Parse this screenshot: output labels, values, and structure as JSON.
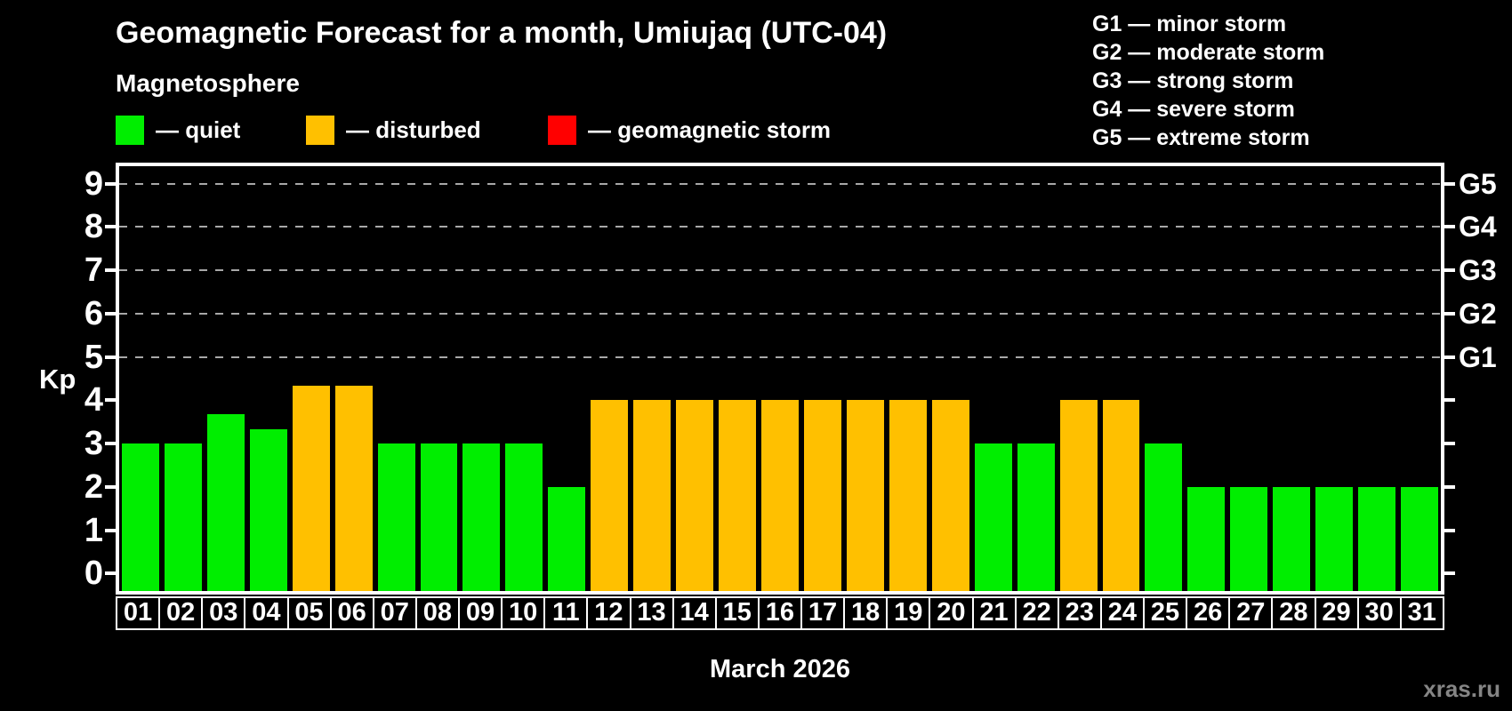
{
  "header": {
    "title": "Geomagnetic Forecast for a month, Umiujaq (UTC-04)",
    "subtitle": "Magnetosphere"
  },
  "magnetosphere_legend": {
    "items": [
      {
        "key": "quiet",
        "swatch_color": "#00ee00",
        "label": "— quiet"
      },
      {
        "key": "disturbed",
        "swatch_color": "#ffc000",
        "label": "— disturbed"
      },
      {
        "key": "storm",
        "swatch_color": "#ff0000",
        "label": "— geomagnetic storm"
      }
    ]
  },
  "storm_scale_legend": {
    "items": [
      "G1 — minor storm",
      "G2 — moderate storm",
      "G3 — strong storm",
      "G4 — severe storm",
      "G5 — extreme storm"
    ]
  },
  "chart_data": {
    "type": "bar",
    "title": "Geomagnetic Forecast for a month, Umiujaq (UTC-04)",
    "xlabel": "March 2026",
    "ylabel": "Kp",
    "ylim": [
      -0.4,
      9.4
    ],
    "yticks": [
      0,
      1,
      2,
      3,
      4,
      5,
      6,
      7,
      8,
      9
    ],
    "gridlines_at_kp": [
      5,
      6,
      7,
      8,
      9
    ],
    "grid": "dashed horizontal lines at G-storm levels only",
    "legend_position": "top-left",
    "right_axis_labels": [
      {
        "kp": 5,
        "text": "G1"
      },
      {
        "kp": 6,
        "text": "G2"
      },
      {
        "kp": 7,
        "text": "G3"
      },
      {
        "kp": 8,
        "text": "G4"
      },
      {
        "kp": 9,
        "text": "G5"
      }
    ],
    "categories": [
      "01",
      "02",
      "03",
      "04",
      "05",
      "06",
      "07",
      "08",
      "09",
      "10",
      "11",
      "12",
      "13",
      "14",
      "15",
      "16",
      "17",
      "18",
      "19",
      "20",
      "21",
      "22",
      "23",
      "24",
      "25",
      "26",
      "27",
      "28",
      "29",
      "30",
      "31"
    ],
    "values": [
      3,
      3,
      3.67,
      3.33,
      4.33,
      4.33,
      3,
      3,
      3,
      3,
      2,
      4,
      4,
      4,
      4,
      4,
      4,
      4,
      4,
      4,
      3,
      3,
      4,
      4,
      3,
      2,
      2,
      2,
      2,
      2,
      2
    ],
    "statuses": [
      "quiet",
      "quiet",
      "quiet",
      "quiet",
      "disturbed",
      "disturbed",
      "quiet",
      "quiet",
      "quiet",
      "quiet",
      "quiet",
      "disturbed",
      "disturbed",
      "disturbed",
      "disturbed",
      "disturbed",
      "disturbed",
      "disturbed",
      "disturbed",
      "disturbed",
      "quiet",
      "quiet",
      "disturbed",
      "disturbed",
      "quiet",
      "quiet",
      "quiet",
      "quiet",
      "quiet",
      "quiet",
      "quiet"
    ],
    "status_colors": {
      "quiet": "#00ee00",
      "disturbed": "#ffc000",
      "storm": "#ff0000"
    }
  },
  "footer": {
    "xaxis_title": "March 2026",
    "watermark": "xras.ru"
  },
  "colors": {
    "background": "#000000",
    "axis": "#ffffff",
    "gridline": "#a8a8a8",
    "text": "#ffffff",
    "watermark": "#858585"
  }
}
